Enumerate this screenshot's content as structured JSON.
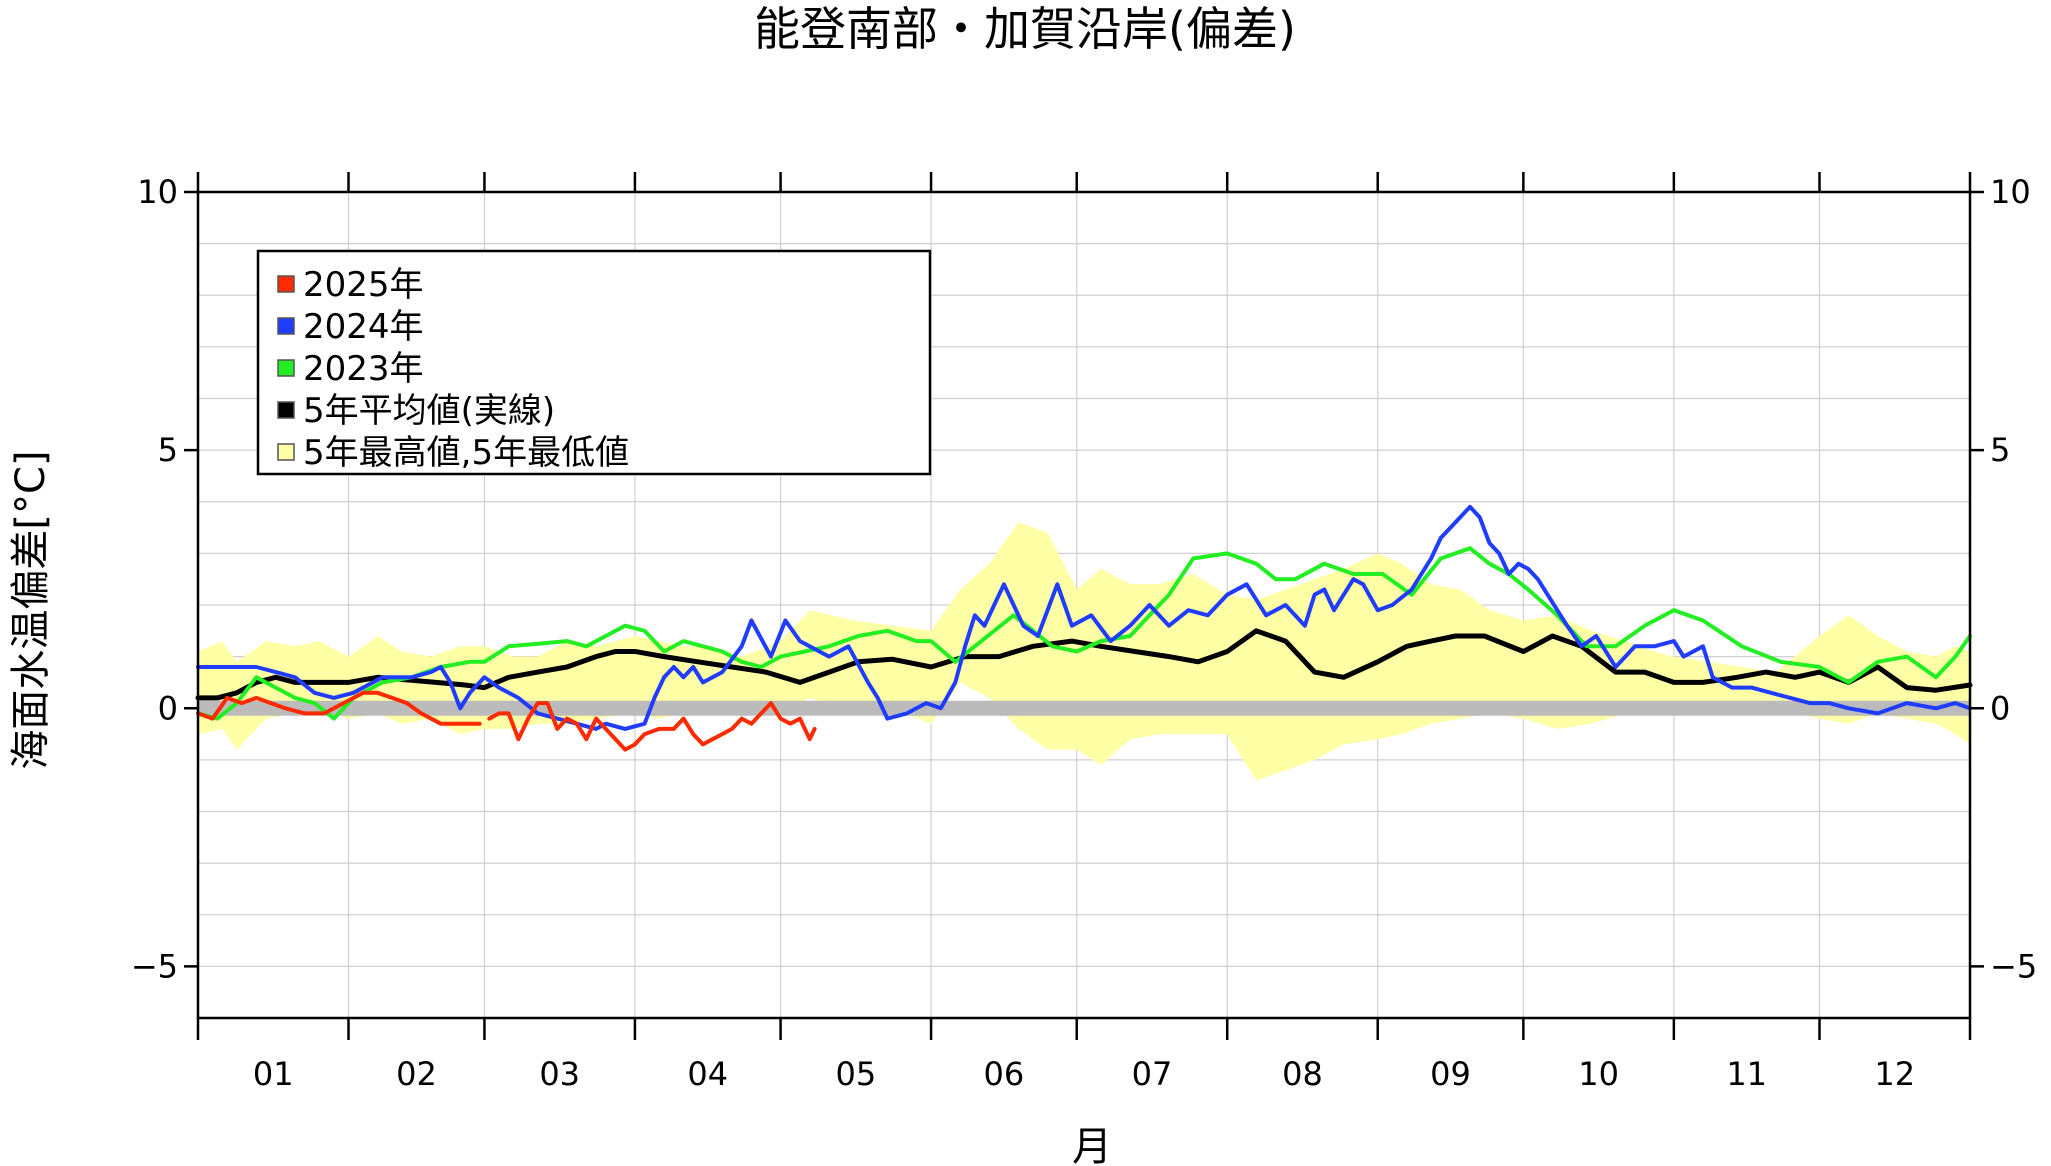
{
  "chart_data": {
    "type": "line",
    "title": "能登南部・加賀沿岸(偏差)",
    "xlabel": "月",
    "ylabel": "海面水温偏差[°C]",
    "ylim": [
      -6,
      10
    ],
    "xlim": [
      0,
      365
    ],
    "y_ticks": [
      10,
      5,
      0,
      -5
    ],
    "y_tick_labels": [
      "10",
      "5",
      "0",
      "−5"
    ],
    "month_labels": [
      "01",
      "02",
      "03",
      "04",
      "05",
      "06",
      "07",
      "08",
      "09",
      "10",
      "11",
      "12"
    ],
    "month_starts": [
      0,
      31,
      59,
      90,
      120,
      151,
      181,
      212,
      243,
      273,
      304,
      334,
      365
    ],
    "grid": true,
    "legend": {
      "position": "top-left",
      "entries": [
        {
          "label": "2025年",
          "color": "#ff2a00"
        },
        {
          "label": "2024年",
          "color": "#1f3cff"
        },
        {
          "label": "2023年",
          "color": "#22ee22"
        },
        {
          "label": "5年平均値(実線)",
          "color": "#000000"
        },
        {
          "label": "5年最高値,5年最低値",
          "color": "#ffffa6"
        }
      ]
    },
    "zero_band_color": "#bbbbbb",
    "band": {
      "name": "5年最高値,5年最低値",
      "color": "#ffffa6",
      "x": [
        0,
        5,
        8,
        14,
        20,
        25,
        31,
        37,
        42,
        48,
        54,
        59,
        65,
        70,
        76,
        82,
        90,
        95,
        100,
        106,
        112,
        120,
        126,
        135,
        143,
        151,
        157,
        163,
        169,
        175,
        181,
        186,
        192,
        198,
        205,
        212,
        218,
        224,
        230,
        236,
        243,
        248,
        254,
        260,
        266,
        273,
        280,
        287,
        294,
        300,
        304,
        311,
        318,
        325,
        334,
        340,
        346,
        352,
        358,
        362,
        365
      ],
      "max": [
        1.1,
        1.3,
        0.9,
        1.3,
        1.2,
        1.3,
        1.0,
        1.4,
        1.1,
        1.0,
        1.2,
        1.2,
        1.0,
        1.0,
        1.3,
        1.2,
        1.4,
        1.3,
        1.2,
        1.2,
        1.0,
        1.3,
        1.9,
        1.7,
        1.6,
        1.5,
        2.3,
        2.8,
        3.6,
        3.4,
        2.3,
        2.7,
        2.4,
        2.4,
        2.6,
        2.2,
        2.1,
        2.3,
        2.5,
        2.7,
        3.0,
        2.8,
        2.4,
        2.3,
        1.9,
        1.7,
        1.8,
        1.5,
        1.3,
        1.1,
        1.0,
        0.9,
        0.8,
        0.7,
        1.4,
        1.8,
        1.4,
        1.1,
        1.0,
        1.2,
        1.1
      ],
      "min": [
        -0.5,
        -0.4,
        -0.8,
        -0.2,
        -0.1,
        0.0,
        -0.2,
        -0.1,
        -0.3,
        -0.2,
        -0.5,
        -0.4,
        -0.4,
        -0.3,
        -0.3,
        -0.2,
        -0.1,
        -0.2,
        -0.1,
        0.0,
        -0.1,
        -0.1,
        0.2,
        -0.1,
        0.0,
        -0.3,
        0.5,
        0.2,
        -0.4,
        -0.8,
        -0.8,
        -1.1,
        -0.6,
        -0.5,
        -0.5,
        -0.5,
        -1.4,
        -1.2,
        -1.0,
        -0.7,
        -0.6,
        -0.5,
        -0.3,
        -0.2,
        -0.1,
        -0.2,
        -0.4,
        -0.3,
        -0.1,
        0.0,
        0.1,
        0.0,
        0.1,
        0.0,
        -0.2,
        -0.3,
        -0.1,
        -0.2,
        -0.3,
        -0.5,
        -0.7
      ]
    },
    "series": [
      {
        "name": "5年平均値(実線)",
        "color": "#000000",
        "x": [
          0,
          4,
          8,
          12,
          16,
          20,
          25,
          31,
          37,
          43,
          49,
          55,
          59,
          64,
          70,
          76,
          82,
          86,
          90,
          96,
          103,
          110,
          117,
          124,
          130,
          136,
          143,
          151,
          158,
          165,
          172,
          180,
          186,
          193,
          200,
          206,
          212,
          218,
          224,
          230,
          236,
          243,
          249,
          254,
          259,
          265,
          273,
          279,
          285,
          292,
          298,
          304,
          310,
          317,
          323,
          329,
          334,
          340,
          346,
          352,
          358,
          365
        ],
        "y": [
          0.2,
          0.2,
          0.3,
          0.5,
          0.6,
          0.5,
          0.5,
          0.5,
          0.6,
          0.55,
          0.5,
          0.45,
          0.4,
          0.6,
          0.7,
          0.8,
          1.0,
          1.1,
          1.1,
          1.0,
          0.9,
          0.8,
          0.7,
          0.5,
          0.7,
          0.9,
          0.95,
          0.8,
          1.0,
          1.0,
          1.2,
          1.3,
          1.2,
          1.1,
          1.0,
          0.9,
          1.1,
          1.5,
          1.3,
          0.7,
          0.6,
          0.9,
          1.2,
          1.3,
          1.4,
          1.4,
          1.1,
          1.4,
          1.2,
          0.7,
          0.7,
          0.5,
          0.5,
          0.6,
          0.7,
          0.6,
          0.7,
          0.5,
          0.8,
          0.4,
          0.35,
          0.45
        ]
      },
      {
        "name": "2023年",
        "color": "#22ee22",
        "x": [
          0,
          4,
          8,
          12,
          16,
          20,
          24,
          28,
          32,
          38,
          44,
          50,
          56,
          59,
          64,
          70,
          76,
          80,
          84,
          88,
          92,
          96,
          100,
          104,
          108,
          112,
          116,
          120,
          125,
          130,
          136,
          142,
          148,
          151,
          156,
          160,
          164,
          168,
          172,
          176,
          181,
          186,
          192,
          196,
          200,
          205,
          212,
          218,
          222,
          226,
          232,
          238,
          244,
          250,
          256,
          262,
          266,
          270,
          274,
          280,
          286,
          292,
          298,
          304,
          310,
          318,
          326,
          334,
          340,
          346,
          352,
          358,
          362,
          365
        ],
        "y": [
          -0.1,
          -0.2,
          0.1,
          0.6,
          0.4,
          0.2,
          0.1,
          -0.2,
          0.2,
          0.5,
          0.6,
          0.8,
          0.9,
          0.9,
          1.2,
          1.25,
          1.3,
          1.2,
          1.4,
          1.6,
          1.5,
          1.1,
          1.3,
          1.2,
          1.1,
          0.9,
          0.8,
          1.0,
          1.1,
          1.2,
          1.4,
          1.5,
          1.3,
          1.3,
          0.9,
          1.2,
          1.5,
          1.8,
          1.5,
          1.2,
          1.1,
          1.3,
          1.4,
          1.8,
          2.2,
          2.9,
          3.0,
          2.8,
          2.5,
          2.5,
          2.8,
          2.6,
          2.6,
          2.2,
          2.9,
          3.1,
          2.8,
          2.6,
          2.3,
          1.8,
          1.2,
          1.2,
          1.6,
          1.9,
          1.7,
          1.2,
          0.9,
          0.8,
          0.5,
          0.9,
          1.0,
          0.6,
          1.0,
          1.4
        ]
      },
      {
        "name": "2024年",
        "color": "#1f3cff",
        "x": [
          0,
          4,
          8,
          12,
          16,
          20,
          24,
          28,
          32,
          38,
          44,
          48,
          50,
          52,
          54,
          56,
          59,
          62,
          66,
          70,
          74,
          78,
          82,
          84,
          88,
          92,
          94,
          96,
          98,
          100,
          102,
          104,
          108,
          112,
          114,
          118,
          121,
          124,
          126,
          128,
          130,
          134,
          138,
          140,
          142,
          146,
          150,
          153,
          156,
          158,
          160,
          162,
          164,
          166,
          170,
          173,
          177,
          180,
          184,
          188,
          192,
          196,
          200,
          204,
          208,
          212,
          216,
          220,
          224,
          228,
          230,
          232,
          234,
          238,
          240,
          243,
          246,
          250,
          254,
          256,
          258,
          260,
          262,
          264,
          266,
          268,
          270,
          272,
          274,
          276,
          278,
          282,
          285,
          288,
          292,
          296,
          300,
          304,
          306,
          310,
          312,
          316,
          320,
          324,
          328,
          332,
          336,
          340,
          346,
          352,
          358,
          362,
          365
        ],
        "y": [
          0.8,
          0.8,
          0.8,
          0.8,
          0.7,
          0.6,
          0.3,
          0.2,
          0.3,
          0.6,
          0.6,
          0.7,
          0.8,
          0.5,
          0.0,
          0.3,
          0.6,
          0.4,
          0.2,
          -0.1,
          -0.2,
          -0.3,
          -0.4,
          -0.3,
          -0.4,
          -0.3,
          0.2,
          0.6,
          0.8,
          0.6,
          0.8,
          0.5,
          0.7,
          1.2,
          1.7,
          1.0,
          1.7,
          1.3,
          1.2,
          1.1,
          1.0,
          1.2,
          0.5,
          0.2,
          -0.2,
          -0.1,
          0.1,
          0.0,
          0.5,
          1.2,
          1.8,
          1.6,
          2.0,
          2.4,
          1.6,
          1.4,
          2.4,
          1.6,
          1.8,
          1.3,
          1.6,
          2.0,
          1.6,
          1.9,
          1.8,
          2.2,
          2.4,
          1.8,
          2.0,
          1.6,
          2.2,
          2.3,
          1.9,
          2.5,
          2.4,
          1.9,
          2.0,
          2.3,
          2.9,
          3.3,
          3.5,
          3.7,
          3.9,
          3.7,
          3.2,
          3.0,
          2.6,
          2.8,
          2.7,
          2.5,
          2.2,
          1.6,
          1.2,
          1.4,
          0.8,
          1.2,
          1.2,
          1.3,
          1.0,
          1.2,
          0.6,
          0.4,
          0.4,
          0.3,
          0.2,
          0.1,
          0.1,
          0.0,
          -0.1,
          0.1,
          0.0,
          0.1,
          0.0
        ]
      },
      {
        "name": "2025年",
        "color": "#ff2a00",
        "segments": [
          {
            "x": [
              0,
              3,
              6,
              9,
              12,
              15,
              18,
              22,
              26,
              30,
              34,
              37,
              40,
              43,
              46,
              50,
              54,
              58
            ],
            "y": [
              -0.1,
              -0.2,
              0.2,
              0.1,
              0.2,
              0.1,
              0.0,
              -0.1,
              -0.1,
              0.1,
              0.3,
              0.3,
              0.2,
              0.1,
              -0.1,
              -0.3,
              -0.3,
              -0.3
            ]
          },
          {
            "x": [
              60,
              62,
              64,
              66,
              68,
              70,
              72,
              74,
              76,
              78,
              80,
              82,
              84,
              86,
              88,
              90,
              92,
              95,
              98,
              100,
              102,
              104,
              106,
              108,
              110,
              112,
              114,
              116,
              118,
              120,
              122,
              124,
              126,
              127
            ],
            "y": [
              -0.2,
              -0.1,
              -0.1,
              -0.6,
              -0.2,
              0.1,
              0.1,
              -0.4,
              -0.2,
              -0.3,
              -0.6,
              -0.2,
              -0.4,
              -0.6,
              -0.8,
              -0.7,
              -0.5,
              -0.4,
              -0.4,
              -0.2,
              -0.5,
              -0.7,
              -0.6,
              -0.5,
              -0.4,
              -0.2,
              -0.3,
              -0.1,
              0.1,
              -0.2,
              -0.3,
              -0.2,
              -0.6,
              -0.4
            ]
          }
        ]
      }
    ]
  }
}
